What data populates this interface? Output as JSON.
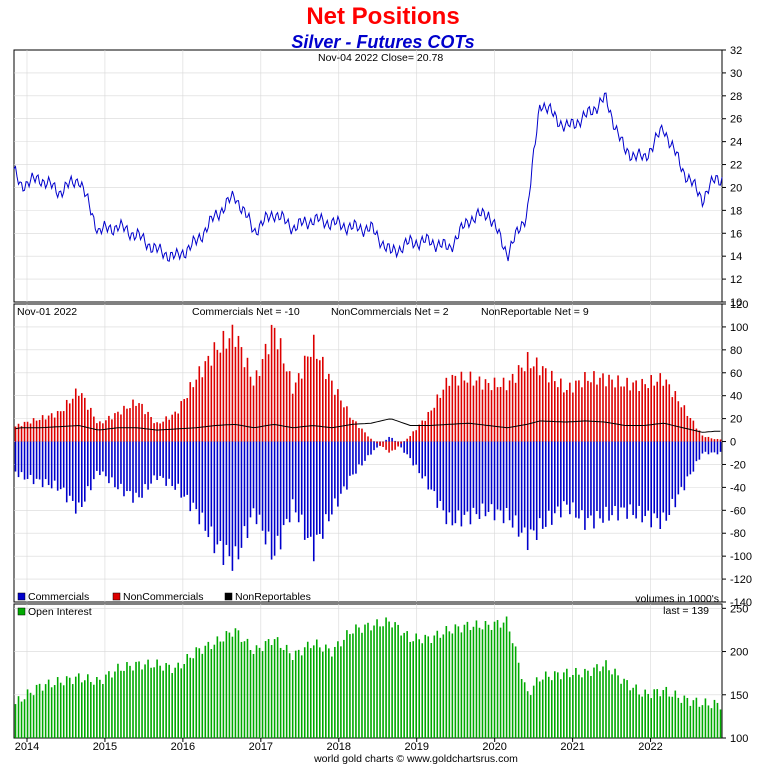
{
  "title": "Net Positions",
  "subtitle": "Silver - Futures COTs",
  "footer": "world gold charts © www.goldchartsrus.com",
  "colors": {
    "price_line": "#0000cc",
    "commercials": "#0000cc",
    "noncommercials": "#dd0000",
    "nonreportables": "#000000",
    "open_interest": "#00aa00",
    "grid": "#d8d8d8"
  },
  "chart_data": [
    {
      "type": "line",
      "panel": "price",
      "header": "Nov-04  2022   Close= 20.78",
      "x": [
        "2013-10",
        "2013-12",
        "2014-03",
        "2014-06",
        "2014-09",
        "2014-12",
        "2015-03",
        "2015-06",
        "2015-09",
        "2015-12",
        "2016-03",
        "2016-06",
        "2016-09",
        "2016-12",
        "2017-03",
        "2017-06",
        "2017-09",
        "2017-12",
        "2018-03",
        "2018-06",
        "2018-09",
        "2018-12",
        "2019-03",
        "2019-06",
        "2019-09",
        "2019-12",
        "2020-03",
        "2020-06",
        "2020-08",
        "2020-12",
        "2021-03",
        "2021-06",
        "2021-09",
        "2021-12",
        "2022-03",
        "2022-06",
        "2022-09",
        "2022-11"
      ],
      "values": [
        22.5,
        20.2,
        20.8,
        19.6,
        20.8,
        16.2,
        16.6,
        15.8,
        14.5,
        13.9,
        15.2,
        17.5,
        19.3,
        16.2,
        17.8,
        16.5,
        17.2,
        16.9,
        16.5,
        16.4,
        14.3,
        15.2,
        15.3,
        14.7,
        17.2,
        17.8,
        14.2,
        17.8,
        27.5,
        25.2,
        26.2,
        27.8,
        23.2,
        22.5,
        25.2,
        21.5,
        19.0,
        20.78
      ],
      "ylim": [
        10,
        32
      ],
      "yticks": [
        "32",
        "30",
        "28",
        "26",
        "24",
        "22",
        "20",
        "18",
        "16",
        "14",
        "12",
        "10"
      ]
    },
    {
      "type": "bar",
      "panel": "net_positions",
      "header_date": "Nov-01  2022",
      "header_commercials": "Commercials Net = -10",
      "header_noncommercials": "NonCommercials Net = 2",
      "header_nonreportable": "NonReportable Net = 9",
      "x": [
        "2013-10",
        "2013-12",
        "2014-03",
        "2014-06",
        "2014-09",
        "2014-12",
        "2015-03",
        "2015-06",
        "2015-09",
        "2015-12",
        "2016-03",
        "2016-06",
        "2016-09",
        "2016-12",
        "2017-03",
        "2017-06",
        "2017-09",
        "2017-12",
        "2018-03",
        "2018-06",
        "2018-09",
        "2018-12",
        "2019-03",
        "2019-06",
        "2019-09",
        "2019-12",
        "2020-03",
        "2020-06",
        "2020-08",
        "2020-12",
        "2021-03",
        "2021-06",
        "2021-09",
        "2021-12",
        "2022-03",
        "2022-06",
        "2022-09",
        "2022-11"
      ],
      "series": [
        {
          "name": "Commercials",
          "values": [
            -20,
            -30,
            -35,
            -40,
            -60,
            -25,
            -40,
            -50,
            -30,
            -40,
            -60,
            -90,
            -105,
            -60,
            -100,
            -55,
            -95,
            -60,
            -30,
            -10,
            5,
            -15,
            -40,
            -70,
            -65,
            -60,
            -65,
            -85,
            -75,
            -55,
            -70,
            -65,
            -60,
            -65,
            -70,
            -40,
            -10,
            -10
          ]
        },
        {
          "name": "NonCommercials",
          "values": [
            10,
            15,
            20,
            25,
            45,
            15,
            25,
            35,
            15,
            25,
            55,
            80,
            95,
            50,
            100,
            45,
            85,
            50,
            20,
            2,
            -10,
            5,
            25,
            55,
            55,
            50,
            50,
            70,
            65,
            45,
            55,
            55,
            50,
            50,
            55,
            30,
            5,
            2
          ]
        },
        {
          "name": "NonReportables",
          "values": [
            10,
            12,
            12,
            13,
            14,
            10,
            12,
            12,
            10,
            11,
            12,
            14,
            15,
            12,
            15,
            12,
            14,
            12,
            15,
            16,
            20,
            14,
            14,
            15,
            16,
            14,
            12,
            15,
            18,
            17,
            18,
            17,
            14,
            14,
            16,
            12,
            8,
            9
          ]
        }
      ],
      "ylim": [
        -140,
        120
      ],
      "yticks": [
        "120",
        "100",
        "80",
        "60",
        "40",
        "20",
        "0",
        "-20",
        "-40",
        "-60",
        "-80",
        "-100",
        "-120",
        "-140"
      ],
      "legend": [
        "Commercials",
        "NonCommercials",
        "NonReportables"
      ],
      "units_note": "volumes in 1000's"
    },
    {
      "type": "bar",
      "panel": "open_interest",
      "legend": "Open Interest",
      "last_label": "last = 139",
      "x": [
        "2013-10",
        "2013-12",
        "2014-03",
        "2014-06",
        "2014-09",
        "2014-12",
        "2015-03",
        "2015-06",
        "2015-09",
        "2015-12",
        "2016-03",
        "2016-06",
        "2016-09",
        "2016-12",
        "2017-03",
        "2017-06",
        "2017-09",
        "2017-12",
        "2018-03",
        "2018-06",
        "2018-09",
        "2018-12",
        "2019-03",
        "2019-06",
        "2019-09",
        "2019-12",
        "2020-03",
        "2020-06",
        "2020-08",
        "2020-12",
        "2021-03",
        "2021-06",
        "2021-09",
        "2021-12",
        "2022-03",
        "2022-06",
        "2022-09",
        "2022-11"
      ],
      "values": [
        130,
        145,
        160,
        165,
        170,
        165,
        180,
        185,
        185,
        180,
        200,
        210,
        225,
        200,
        215,
        195,
        210,
        200,
        225,
        230,
        235,
        215,
        215,
        225,
        230,
        230,
        235,
        150,
        170,
        175,
        175,
        185,
        165,
        150,
        155,
        145,
        140,
        139
      ],
      "ylim": [
        100,
        255
      ],
      "yticks": [
        "250",
        "200",
        "150",
        "100"
      ]
    }
  ],
  "x_axis": {
    "labels": [
      "2014",
      "2015",
      "2016",
      "2017",
      "2018",
      "2019",
      "2020",
      "2021",
      "2022"
    ]
  }
}
